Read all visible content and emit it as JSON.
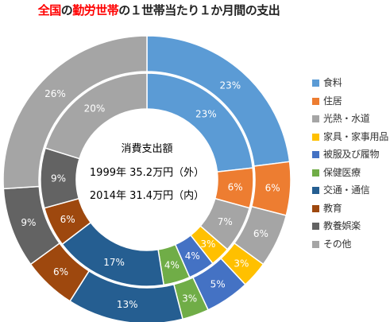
{
  "title": {
    "part1": "全国",
    "part2": "の",
    "part3": "勤労世帯",
    "part4": "の１世帯当たり１か月間の支出"
  },
  "center_label": {
    "line1": "消費支出額",
    "line2": "1999年 35.2万円（外）",
    "line3": "2014年 31.4万円（内）"
  },
  "chart_data": {
    "type": "pie",
    "subtype": "double-doughnut",
    "categories": [
      "食料",
      "住居",
      "光熱・水道",
      "家具・家事用品",
      "被服及び履物",
      "保健医療",
      "交通・通信",
      "教育",
      "教養娯楽",
      "その他"
    ],
    "colors": [
      "#5b9bd5",
      "#ed7d31",
      "#a5a5a5",
      "#ffc000",
      "#4472c4",
      "#70ad47",
      "#255e91",
      "#9e480e",
      "#636363",
      "#a5a5a5"
    ],
    "series": [
      {
        "ring": "outer",
        "year": "1999",
        "total": "35.2万円",
        "values": [
          23,
          6,
          6,
          3,
          5,
          3,
          13,
          6,
          9,
          26
        ]
      },
      {
        "ring": "inner",
        "year": "2014",
        "total": "31.4万円",
        "values": [
          23,
          6,
          7,
          3,
          4,
          4,
          17,
          6,
          9,
          20
        ]
      }
    ],
    "value_suffix": "%",
    "legend_position": "right"
  }
}
